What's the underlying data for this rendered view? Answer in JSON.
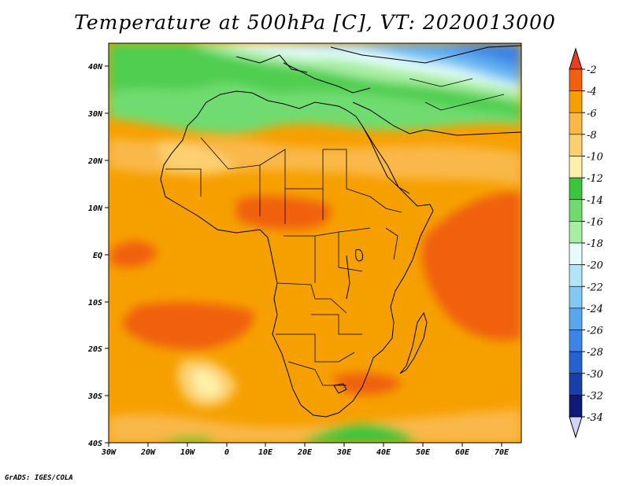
{
  "title": "Temperature at 500hPa [C], VT: 2020013000",
  "credit": "GrADS: IGES/COLA",
  "map": {
    "lat_labels": [
      "40N",
      "30N",
      "20N",
      "10N",
      "EQ",
      "10S",
      "20S",
      "30S",
      "40S"
    ],
    "lon_labels": [
      "30W",
      "20W",
      "10W",
      "0",
      "10E",
      "20E",
      "30E",
      "40E",
      "50E",
      "60E",
      "70E"
    ],
    "lat_range": [
      -40,
      45
    ],
    "lon_range": [
      -30,
      75
    ]
  },
  "colorbar": {
    "levels": [
      "-2",
      "-4",
      "-6",
      "-8",
      "-10",
      "-12",
      "-14",
      "-16",
      "-18",
      "-20",
      "-22",
      "-24",
      "-26",
      "-28",
      "-30",
      "-32",
      "-34"
    ],
    "colors": [
      "#e8401c",
      "#f06010",
      "#f6a000",
      "#f9b848",
      "#fccf70",
      "#fdf0a8",
      "#3cc43c",
      "#6fdb6f",
      "#a8eea2",
      "#e4fcfc",
      "#b4e4f8",
      "#82c8f4",
      "#5aa6ee",
      "#3c84e6",
      "#2462d0",
      "#1840a8",
      "#101a78",
      "#d4d4f8"
    ]
  }
}
